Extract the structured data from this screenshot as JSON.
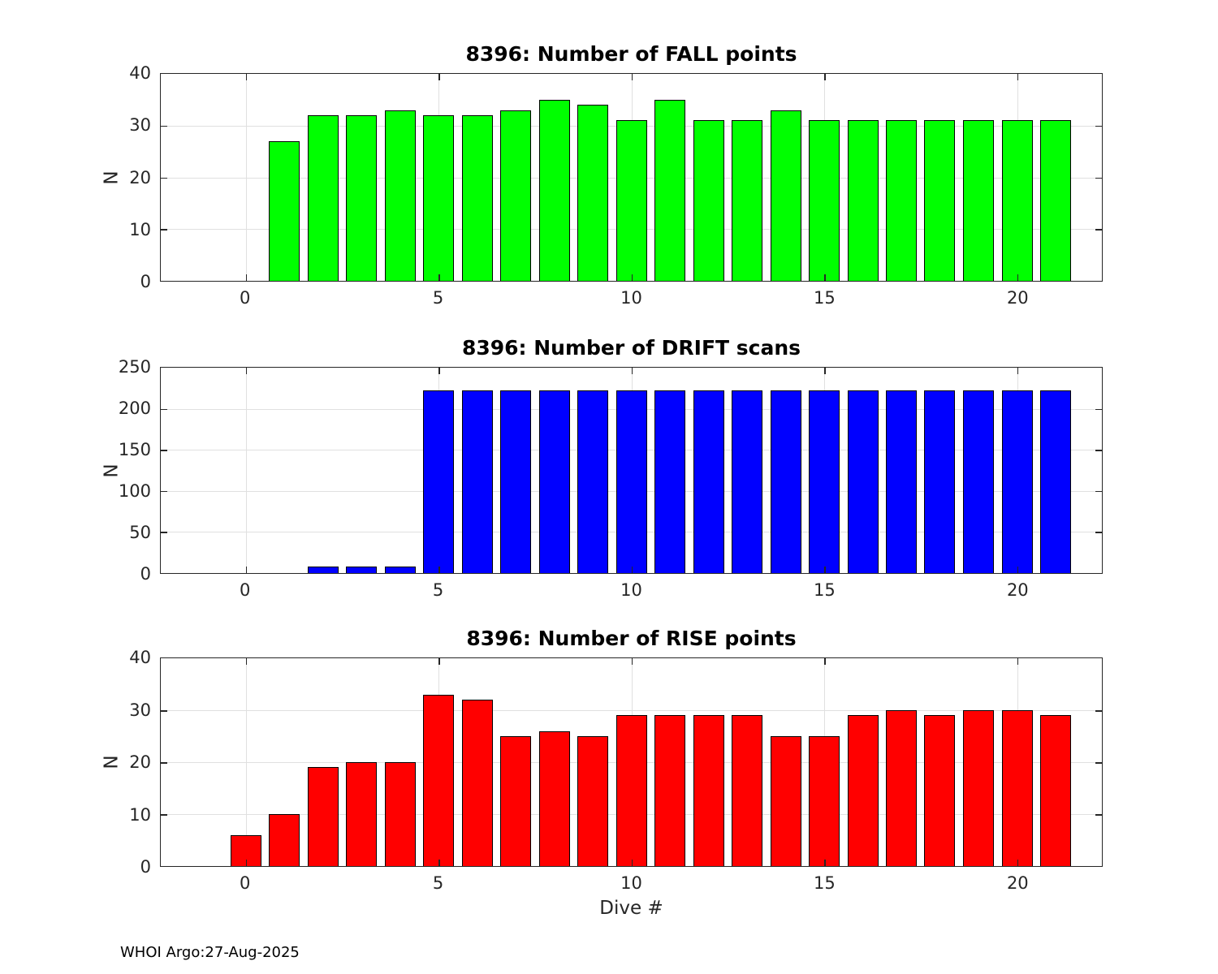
{
  "figure": {
    "footer": "WHOI Argo:27-Aug-2025"
  },
  "chart_data": [
    {
      "type": "bar",
      "title": "8396: Number of FALL points",
      "xlabel": "",
      "ylabel": "N",
      "bar_color": "#00ff00",
      "x": [
        1,
        2,
        3,
        4,
        5,
        6,
        7,
        8,
        9,
        10,
        11,
        12,
        13,
        14,
        15,
        16,
        17,
        18,
        19,
        20,
        21
      ],
      "values": [
        27,
        32,
        32,
        33,
        32,
        32,
        33,
        35,
        34,
        31,
        35,
        31,
        31,
        33,
        31,
        31,
        31,
        31,
        31,
        31,
        31
      ],
      "bar_width": 0.8,
      "xlim": [
        -2.2,
        22.2
      ],
      "ylim": [
        0,
        40
      ],
      "xticks": [
        0,
        5,
        10,
        15,
        20
      ],
      "yticks": [
        0,
        10,
        20,
        30,
        40
      ],
      "grid": true,
      "legend": "none"
    },
    {
      "type": "bar",
      "title": "8396: Number of DRIFT scans",
      "xlabel": "",
      "ylabel": "N",
      "bar_color": "#0000ff",
      "x": [
        2,
        3,
        4,
        5,
        6,
        7,
        8,
        9,
        10,
        11,
        12,
        13,
        14,
        15,
        16,
        17,
        18,
        19,
        20,
        21
      ],
      "values": [
        8,
        8,
        8,
        222,
        222,
        222,
        222,
        222,
        222,
        222,
        222,
        222,
        222,
        222,
        222,
        222,
        222,
        222,
        222,
        222
      ],
      "bar_width": 0.8,
      "xlim": [
        -2.2,
        22.2
      ],
      "ylim": [
        0,
        250
      ],
      "xticks": [
        0,
        5,
        10,
        15,
        20
      ],
      "yticks": [
        0,
        50,
        100,
        150,
        200,
        250
      ],
      "grid": true,
      "legend": "none"
    },
    {
      "type": "bar",
      "title": "8396: Number of RISE points",
      "xlabel": "Dive #",
      "ylabel": "N",
      "bar_color": "#ff0000",
      "x": [
        0,
        1,
        2,
        3,
        4,
        5,
        6,
        7,
        8,
        9,
        10,
        11,
        12,
        13,
        14,
        15,
        16,
        17,
        18,
        19,
        20,
        21
      ],
      "values": [
        6,
        10,
        19,
        20,
        20,
        33,
        32,
        25,
        26,
        25,
        29,
        29,
        29,
        29,
        25,
        25,
        29,
        30,
        29,
        30,
        30,
        29
      ],
      "bar_width": 0.8,
      "xlim": [
        -2.2,
        22.2
      ],
      "ylim": [
        0,
        40
      ],
      "xticks": [
        0,
        5,
        10,
        15,
        20
      ],
      "yticks": [
        0,
        10,
        20,
        30,
        40
      ],
      "grid": true,
      "legend": "none"
    }
  ]
}
